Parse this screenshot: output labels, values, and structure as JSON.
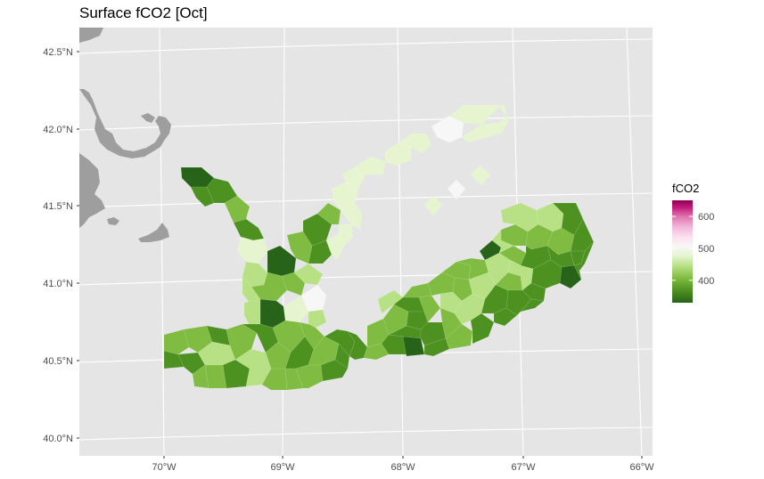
{
  "title": "Surface fCO2 [Oct]",
  "y_axis": {
    "ticks": [
      "42.5°N",
      "42.0°N",
      "41.5°N",
      "41.0°N",
      "40.5°N",
      "40.0°N"
    ],
    "values": [
      42.5,
      42.0,
      41.5,
      41.0,
      40.5,
      40.0
    ]
  },
  "x_axis": {
    "ticks": [
      "70°W",
      "69°W",
      "68°W",
      "67°W",
      "66°W"
    ],
    "values": [
      -70,
      -69,
      -68,
      -67,
      -66
    ]
  },
  "legend": {
    "title": "fCO2",
    "labels": [
      "600",
      "500",
      "400"
    ],
    "values": [
      600,
      500,
      400
    ],
    "range": [
      330,
      650
    ],
    "colors_low_to_high": [
      "#276419",
      "#4d9221",
      "#7fbc41",
      "#b8e186",
      "#e6f5d0",
      "#f7f7f7",
      "#fde0ef",
      "#f1b6da",
      "#de77ae",
      "#c51b7d",
      "#8e0152"
    ]
  },
  "colors": {
    "panel_background": "#e5e5e5",
    "grid": "#ffffff",
    "land": "#9e9e9e"
  }
}
